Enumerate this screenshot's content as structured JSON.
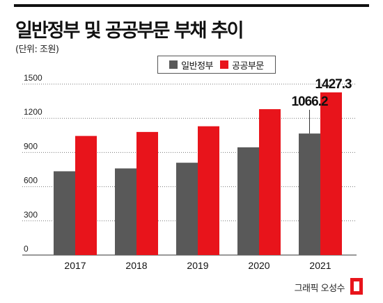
{
  "title": "일반정부 및 공공부문 부채 추이",
  "unit_label": "(단위: 조원)",
  "credit": "그래픽 오성수",
  "colors": {
    "general": "#595959",
    "public": "#e8141b",
    "grid": "#777777",
    "text": "#111111"
  },
  "chart_data": {
    "type": "bar",
    "title": "일반정부 및 공공부문 부채 추이",
    "xlabel": "",
    "ylabel": "",
    "categories": [
      "2017",
      "2018",
      "2019",
      "2020",
      "2021"
    ],
    "series": [
      {
        "name": "일반정부",
        "values": [
          735,
          760,
          810,
          945,
          1066.2
        ]
      },
      {
        "name": "공공부문",
        "values": [
          1045,
          1080,
          1130,
          1280,
          1427.3
        ]
      }
    ],
    "ylim": [
      0,
      1500
    ],
    "yticks": [
      0,
      300,
      600,
      900,
      1200,
      1500
    ],
    "grid": true,
    "legend_position": "top-center",
    "annotations": [
      {
        "series": "일반정부",
        "category": "2021",
        "text": "1066.2"
      },
      {
        "series": "공공부문",
        "category": "2021",
        "text": "1427.3"
      }
    ]
  }
}
